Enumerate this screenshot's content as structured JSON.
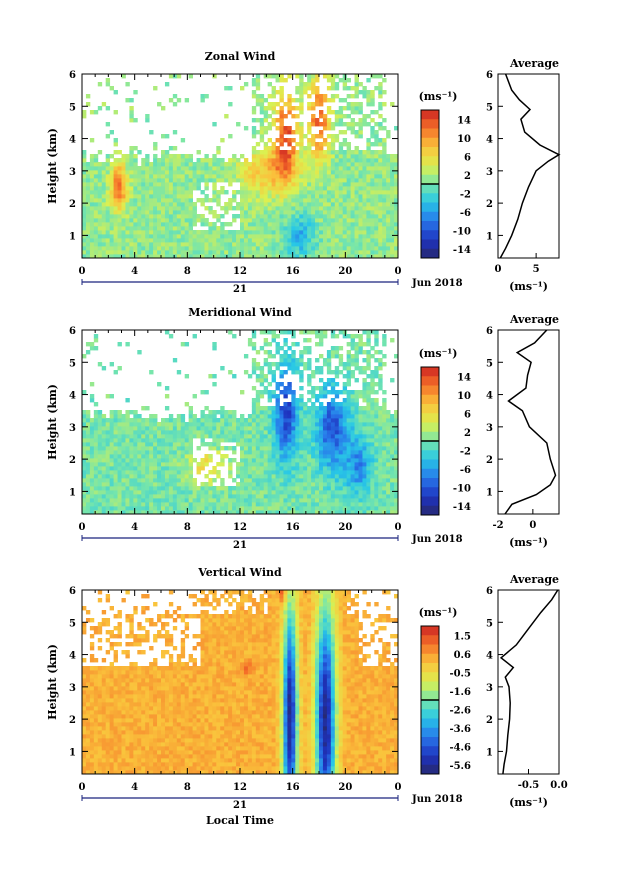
{
  "chart_data": [
    {
      "type": "heatmap",
      "title": "Zonal Wind",
      "xlabel": "",
      "ylabel": "Height (km)",
      "xlim": [
        0,
        24
      ],
      "ylim": [
        0.3,
        6
      ],
      "xticks": [
        "0",
        "4",
        "8",
        "12",
        "16",
        "20",
        "0"
      ],
      "yticks": [
        "1",
        "2",
        "3",
        "4",
        "5",
        "6"
      ],
      "date_label": "21",
      "month_label": "Jun 2018",
      "colorbar": {
        "unit": "(ms⁻¹)",
        "ticks": [
          "14",
          "10",
          "6",
          "2",
          "-2",
          "-6",
          "-10",
          "-14"
        ],
        "range": [
          -16,
          16
        ]
      },
      "features": [
        {
          "t": 2.8,
          "z": 2.5,
          "v": 12,
          "sw": 0.6,
          "sz": 0.7
        },
        {
          "t": 15.5,
          "z": 4.1,
          "v": 13,
          "sw": 0.9,
          "sz": 1.3
        },
        {
          "t": 18.0,
          "z": 4.6,
          "v": 12,
          "sw": 0.8,
          "sz": 1.2
        },
        {
          "t": 16.5,
          "z": 1.0,
          "v": -6,
          "sw": 1.2,
          "sz": 0.7
        },
        {
          "t": 14.0,
          "z": 3.0,
          "v": 7,
          "sw": 2.0,
          "sz": 0.7
        }
      ],
      "profile": {
        "title": "Average",
        "xlabel": "(ms⁻¹)",
        "xlim": [
          0,
          8
        ],
        "xticks": [
          "0",
          "5"
        ],
        "heights": [
          0.3,
          0.6,
          1.0,
          1.5,
          2.0,
          2.5,
          3.0,
          3.3,
          3.5,
          3.8,
          4.2,
          4.6,
          4.9,
          5.2,
          5.5,
          6.0
        ],
        "values": [
          0.3,
          1.0,
          1.8,
          2.6,
          3.2,
          4.0,
          5.0,
          6.6,
          8.0,
          5.5,
          3.5,
          3.0,
          4.2,
          2.8,
          1.8,
          1.0
        ]
      }
    },
    {
      "type": "heatmap",
      "title": "Meridional Wind",
      "xlabel": "",
      "ylabel": "Height (km)",
      "xlim": [
        0,
        24
      ],
      "ylim": [
        0.3,
        6
      ],
      "xticks": [
        "0",
        "4",
        "8",
        "12",
        "16",
        "20",
        "0"
      ],
      "yticks": [
        "1",
        "2",
        "3",
        "4",
        "5",
        "6"
      ],
      "date_label": "21",
      "month_label": "Jun 2018",
      "colorbar": {
        "unit": "(ms⁻¹)",
        "ticks": [
          "14",
          "10",
          "6",
          "2",
          "-2",
          "-6",
          "-10",
          "-14"
        ],
        "range": [
          -16,
          16
        ]
      },
      "features": [
        {
          "t": 15.5,
          "z": 3.5,
          "v": -11,
          "sw": 0.9,
          "sz": 1.5
        },
        {
          "t": 19.0,
          "z": 3.0,
          "v": -10,
          "sw": 1.2,
          "sz": 1.3
        },
        {
          "t": 21.0,
          "z": 1.8,
          "v": -7,
          "sw": 1.0,
          "sz": 0.9
        },
        {
          "t": 9.5,
          "z": 1.8,
          "v": 6,
          "sw": 1.5,
          "sz": 0.5
        }
      ],
      "profile": {
        "title": "Average",
        "xlabel": "(ms⁻¹)",
        "xlim": [
          -2,
          1.5
        ],
        "xticks": [
          "-2",
          "0"
        ],
        "heights": [
          0.3,
          0.6,
          0.9,
          1.2,
          1.5,
          2.0,
          2.5,
          3.0,
          3.5,
          3.8,
          4.2,
          4.6,
          5.0,
          5.3,
          5.6,
          6.0
        ],
        "values": [
          -1.6,
          -1.2,
          0.2,
          1.0,
          1.3,
          1.0,
          0.8,
          -0.2,
          -0.6,
          -1.4,
          -0.4,
          -0.3,
          -0.1,
          -0.9,
          0.1,
          0.8
        ]
      }
    },
    {
      "type": "heatmap",
      "title": "Vertical Wind",
      "xlabel": "Local Time",
      "ylabel": "Height (km)",
      "xlim": [
        0,
        24
      ],
      "ylim": [
        0.3,
        6
      ],
      "xticks": [
        "0",
        "4",
        "8",
        "12",
        "16",
        "20",
        "0"
      ],
      "yticks": [
        "1",
        "2",
        "3",
        "4",
        "5",
        "6"
      ],
      "date_label": "21",
      "month_label": "Jun 2018",
      "colorbar": {
        "unit": "(ms⁻¹)",
        "ticks": [
          "1.5",
          "0.6",
          "-0.5",
          "-1.6",
          "-2.6",
          "-3.6",
          "-4.6",
          "-5.6"
        ],
        "range": [
          -6.1,
          2.0
        ]
      },
      "features": [
        {
          "t": 15.8,
          "z": 2.0,
          "v": -6,
          "sw": 0.55,
          "sz": 3.5
        },
        {
          "t": 18.5,
          "z": 2.0,
          "v": -6,
          "sw": 0.75,
          "sz": 3.5
        },
        {
          "t": 15.2,
          "z": 5.9,
          "v": 1.5,
          "sw": 0.3,
          "sz": 0.25
        },
        {
          "t": 12.5,
          "z": 3.6,
          "v": 1.0,
          "sw": 0.4,
          "sz": 0.2
        }
      ],
      "profile": {
        "title": "Average",
        "xlabel": "(ms⁻¹)",
        "xlim": [
          -1.0,
          0.0
        ],
        "xticks": [
          "-0.5",
          "0.0"
        ],
        "heights": [
          0.3,
          0.6,
          1.0,
          1.5,
          2.0,
          2.5,
          3.0,
          3.3,
          3.6,
          3.9,
          4.3,
          4.8,
          5.3,
          5.7,
          6.0
        ],
        "values": [
          -0.92,
          -0.9,
          -0.86,
          -0.84,
          -0.81,
          -0.8,
          -0.82,
          -0.88,
          -0.75,
          -0.95,
          -0.7,
          -0.5,
          -0.3,
          -0.12,
          -0.02
        ]
      }
    }
  ]
}
